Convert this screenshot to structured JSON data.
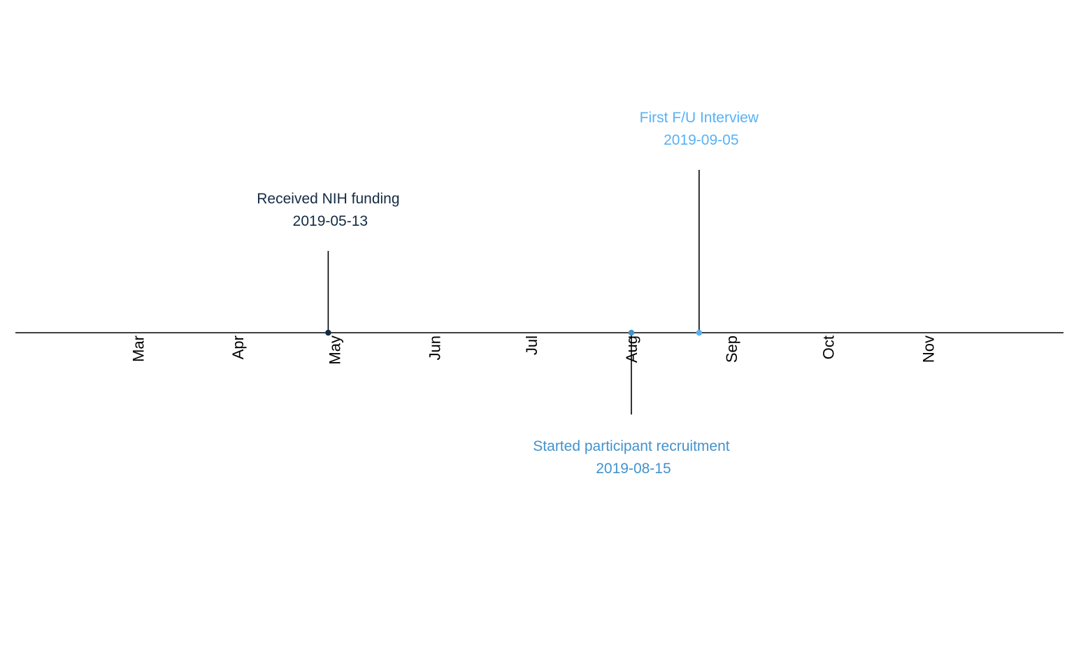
{
  "chart_data": {
    "type": "timeline",
    "x_axis": {
      "type": "date",
      "range": [
        "2019-02-05",
        "2019-12-27"
      ],
      "ticks": [
        {
          "date": "2019-03-15",
          "label": "Mar"
        },
        {
          "date": "2019-04-15",
          "label": "Apr"
        },
        {
          "date": "2019-05-15",
          "label": "May"
        },
        {
          "date": "2019-06-15",
          "label": "Jun"
        },
        {
          "date": "2019-07-15",
          "label": "Jul"
        },
        {
          "date": "2019-08-15",
          "label": "Aug"
        },
        {
          "date": "2019-09-15",
          "label": "Sep"
        },
        {
          "date": "2019-10-15",
          "label": "Oct"
        },
        {
          "date": "2019-11-15",
          "label": "Nov"
        }
      ]
    },
    "events": [
      {
        "date": "2019-05-13",
        "label": "Received NIH funding",
        "date_label": "2019-05-13",
        "color": "#132b43",
        "position": "above",
        "level": 1
      },
      {
        "date": "2019-08-15",
        "label": "Started participant recruitment",
        "date_label": "2019-08-15",
        "color": "#4392cc",
        "position": "below",
        "level": 1
      },
      {
        "date": "2019-09-05",
        "label": "First F/U Interview",
        "date_label": "2019-09-05",
        "color": "#56b1f7",
        "position": "above",
        "level": 2
      }
    ],
    "grid": false,
    "legend": "none"
  }
}
